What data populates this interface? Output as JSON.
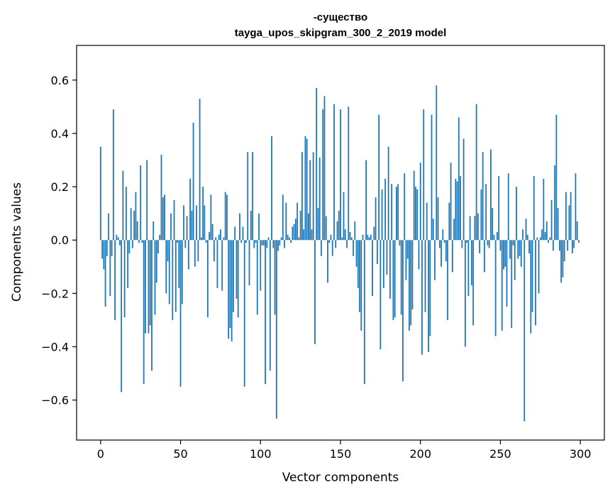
{
  "chart_data": {
    "type": "bar",
    "title_line1": "-существо",
    "title_line2": "tayga_upos_skipgram_300_2_2019 model",
    "xlabel": "Vector components",
    "ylabel": "Components values",
    "xlim": [
      -15,
      315
    ],
    "ylim": [
      -0.75,
      0.73
    ],
    "xticks": [
      0,
      50,
      100,
      150,
      200,
      250,
      300
    ],
    "xtick_labels": [
      "0",
      "50",
      "100",
      "150",
      "200",
      "250",
      "300"
    ],
    "yticks": [
      -0.6,
      -0.4,
      -0.2,
      0.0,
      0.2,
      0.4,
      0.6
    ],
    "ytick_labels": [
      "−0.6",
      "−0.4",
      "−0.2",
      "0.0",
      "0.2",
      "0.4",
      "0.6"
    ],
    "bar_color": "#1f77b4",
    "grid": false,
    "values": [
      0.35,
      -0.07,
      -0.11,
      -0.25,
      -0.06,
      0.1,
      -0.21,
      -0.06,
      0.49,
      -0.3,
      0.02,
      0.01,
      -0.02,
      -0.57,
      0.26,
      -0.29,
      0.2,
      -0.18,
      -0.05,
      0.12,
      -0.03,
      0.11,
      0.18,
      0.07,
      -0.01,
      0.28,
      -0.01,
      -0.54,
      -0.35,
      0.3,
      -0.35,
      -0.32,
      -0.49,
      0.07,
      -0.28,
      -0.16,
      -0.05,
      0.02,
      0.32,
      0.16,
      0.17,
      -0.2,
      -0.08,
      -0.24,
      0.1,
      -0.3,
      0.15,
      -0.27,
      -0.01,
      -0.18,
      -0.55,
      -0.24,
      0.13,
      -0.03,
      0.09,
      -0.11,
      0.23,
      0.11,
      0.44,
      -0.1,
      0.13,
      -0.08,
      0.53,
      0.01,
      0.2,
      0.13,
      -0.01,
      -0.29,
      0.03,
      0.17,
      0.06,
      -0.08,
      0.01,
      -0.18,
      0.02,
      0.04,
      -0.19,
      0.01,
      0.18,
      0.17,
      -0.37,
      -0.33,
      -0.38,
      -0.27,
      0.05,
      -0.22,
      -0.29,
      0.1,
      -0.01,
      0.05,
      -0.55,
      -0.01,
      0.33,
      -0.17,
      0.11,
      0.33,
      -0.03,
      -0.01,
      -0.28,
      0.1,
      -0.19,
      -0.02,
      -0.02,
      -0.54,
      -0.03,
      0.01,
      -0.49,
      0.39,
      -0.03,
      -0.28,
      -0.67,
      -0.04,
      -0.02,
      0.01,
      0.17,
      -0.03,
      0.14,
      0.02,
      0.01,
      -0.01,
      0.05,
      0.06,
      0.08,
      0.14,
      0.01,
      0.11,
      0.33,
      0.04,
      0.39,
      0.38,
      0.1,
      0.3,
      0.04,
      0.33,
      -0.39,
      0.57,
      0.12,
      0.31,
      -0.06,
      0.49,
      0.54,
      0.09,
      -0.16,
      -0.01,
      0.02,
      -0.06,
      0.51,
      -0.03,
      0.07,
      0.11,
      0.49,
      0.01,
      0.18,
      0.04,
      -0.03,
      0.5,
      0.03,
      0.01,
      -0.06,
      0.07,
      -0.1,
      -0.18,
      -0.27,
      -0.34,
      0.02,
      -0.54,
      0.3,
      0.02,
      0.01,
      0.02,
      -0.21,
      0.05,
      0.16,
      -0.09,
      0.47,
      -0.41,
      0.19,
      -0.18,
      0.23,
      -0.13,
      0.35,
      -0.22,
      0.21,
      -0.3,
      -0.29,
      0.2,
      0.21,
      -0.02,
      -0.28,
      -0.53,
      0.25,
      -0.15,
      -0.07,
      -0.34,
      -0.32,
      -0.26,
      0.26,
      0.2,
      0.19,
      -0.11,
      0.29,
      -0.43,
      0.49,
      -0.27,
      0.14,
      -0.42,
      -0.36,
      0.47,
      0.08,
      -0.15,
      0.58,
      0.16,
      -0.03,
      -0.1,
      0.04,
      -0.01,
      -0.08,
      -0.3,
      0.14,
      0.29,
      -0.12,
      0.08,
      0.23,
      0.22,
      0.46,
      0.24,
      -0.03,
      0.38,
      -0.4,
      -0.01,
      -0.21,
      0.09,
      -0.17,
      -0.32,
      0.09,
      0.51,
      0.1,
      -0.05,
      0.19,
      0.33,
      -0.12,
      0.21,
      -0.02,
      -0.03,
      0.34,
      0.12,
      0.02,
      -0.36,
      0.03,
      0.24,
      -0.04,
      -0.34,
      -0.11,
      -0.1,
      -0.25,
      0.25,
      -0.07,
      -0.33,
      -0.02,
      -0.15,
      0.2,
      -0.07,
      -0.06,
      -0.1,
      0.04,
      -0.68,
      0.08,
      0.02,
      -0.05,
      -0.35,
      -0.27,
      0.24,
      -0.32,
      0.01,
      -0.2,
      0.01,
      0.04,
      0.23,
      0.03,
      0.07,
      -0.01,
      0.01,
      0.15,
      -0.04,
      0.28,
      0.47,
      0.12,
      -0.04,
      -0.16,
      -0.14,
      -0.08,
      0.18,
      -0.04,
      0.13,
      0.18,
      -0.05,
      -0.03,
      0.25,
      0.07,
      -0.01
    ]
  }
}
